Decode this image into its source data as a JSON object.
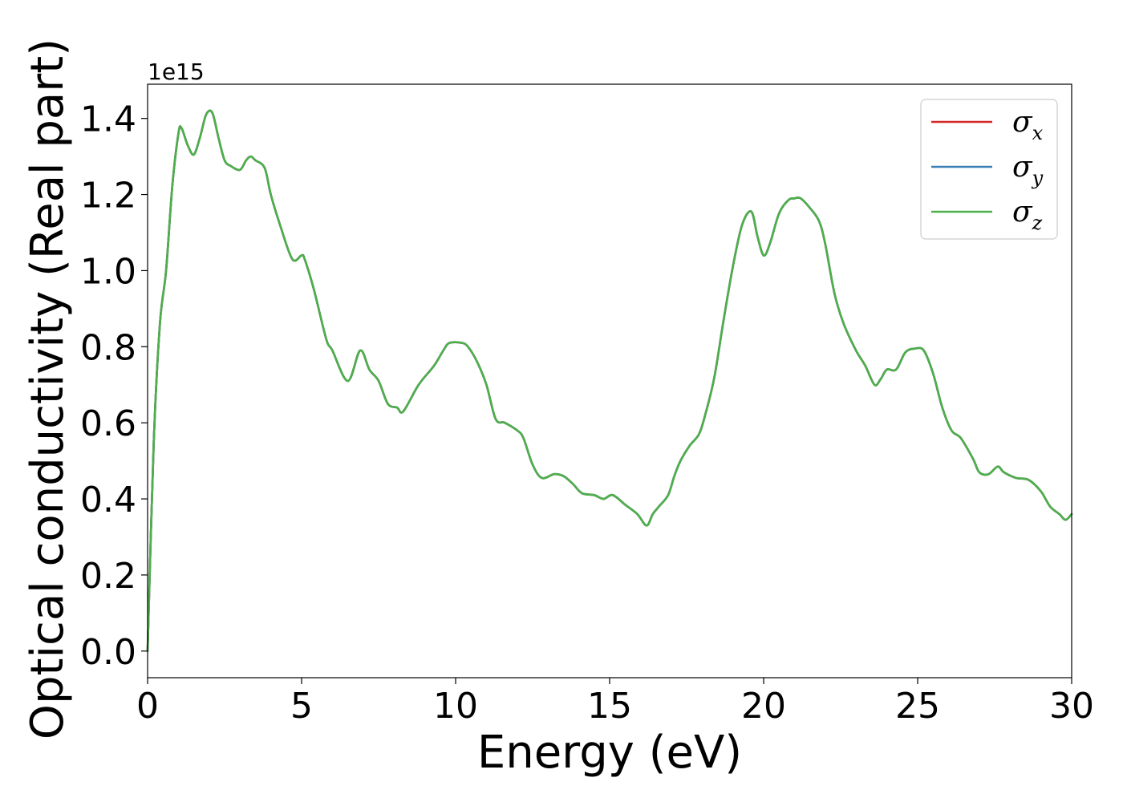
{
  "chart_data": {
    "type": "line",
    "xlabel": "Energy (eV)",
    "ylabel": "Optical conductivity (Real part)",
    "y_offset_label": "1e15",
    "xlim": [
      0,
      30
    ],
    "ylim": [
      -0.07,
      1.49
    ],
    "xticks": [
      0,
      5,
      10,
      15,
      20,
      25,
      30
    ],
    "xtick_labels": [
      "0",
      "5",
      "10",
      "15",
      "20",
      "25",
      "30"
    ],
    "yticks": [
      0.0,
      0.2,
      0.4,
      0.6,
      0.8,
      1.0,
      1.2,
      1.4
    ],
    "ytick_labels": [
      "0.0",
      "0.2",
      "0.4",
      "0.6",
      "0.8",
      "1.0",
      "1.2",
      "1.4"
    ],
    "grid": false,
    "legend_position": "top-right",
    "x": [
      0,
      0.2,
      0.4,
      0.6,
      0.8,
      1.0,
      1.1,
      1.3,
      1.5,
      1.7,
      1.9,
      2.1,
      2.3,
      2.5,
      2.7,
      3.0,
      3.2,
      3.35,
      3.5,
      3.8,
      4.0,
      4.3,
      4.7,
      5.0,
      5.1,
      5.4,
      5.8,
      6.0,
      6.5,
      6.9,
      7.2,
      7.5,
      7.8,
      8.1,
      8.3,
      8.8,
      9.3,
      9.6,
      9.8,
      10.2,
      10.4,
      10.7,
      11.0,
      11.3,
      11.6,
      12.0,
      12.2,
      12.5,
      12.8,
      13.2,
      13.5,
      13.8,
      14.1,
      14.5,
      14.8,
      15.1,
      15.5,
      15.9,
      16.2,
      16.4,
      16.6,
      16.9,
      17.1,
      17.3,
      17.6,
      17.9,
      18.1,
      18.4,
      18.7,
      19.0,
      19.3,
      19.6,
      19.8,
      20.0,
      20.2,
      20.5,
      20.8,
      21.0,
      21.2,
      21.5,
      21.8,
      22.0,
      22.3,
      22.6,
      23.0,
      23.3,
      23.6,
      23.8,
      24.0,
      24.3,
      24.6,
      24.9,
      25.2,
      25.5,
      25.8,
      26.1,
      26.4,
      26.8,
      27.0,
      27.3,
      27.6,
      27.8,
      28.2,
      28.6,
      29.0,
      29.3,
      29.6,
      29.8,
      30.0
    ],
    "series": [
      {
        "name": "σx",
        "label_main": "σ",
        "label_sub": "x",
        "color": "#d62728",
        "y": [
          0.0,
          0.55,
          0.86,
          1.0,
          1.22,
          1.36,
          1.375,
          1.33,
          1.305,
          1.35,
          1.41,
          1.415,
          1.35,
          1.29,
          1.275,
          1.265,
          1.29,
          1.3,
          1.29,
          1.27,
          1.2,
          1.12,
          1.03,
          1.04,
          1.03,
          0.95,
          0.82,
          0.79,
          0.71,
          0.79,
          0.74,
          0.71,
          0.65,
          0.64,
          0.63,
          0.7,
          0.75,
          0.79,
          0.81,
          0.81,
          0.8,
          0.76,
          0.7,
          0.61,
          0.6,
          0.58,
          0.56,
          0.49,
          0.455,
          0.465,
          0.46,
          0.44,
          0.415,
          0.41,
          0.4,
          0.41,
          0.385,
          0.36,
          0.33,
          0.36,
          0.38,
          0.41,
          0.46,
          0.5,
          0.54,
          0.57,
          0.62,
          0.72,
          0.87,
          1.01,
          1.12,
          1.155,
          1.09,
          1.04,
          1.07,
          1.15,
          1.185,
          1.19,
          1.19,
          1.165,
          1.13,
          1.07,
          0.94,
          0.86,
          0.79,
          0.75,
          0.7,
          0.715,
          0.74,
          0.74,
          0.785,
          0.795,
          0.79,
          0.73,
          0.64,
          0.58,
          0.56,
          0.505,
          0.47,
          0.465,
          0.485,
          0.47,
          0.455,
          0.45,
          0.42,
          0.38,
          0.36,
          0.345,
          0.36
        ]
      },
      {
        "name": "σy",
        "label_main": "σ",
        "label_sub": "y",
        "color": "#3a7fb7",
        "y": [
          0.0,
          0.55,
          0.86,
          1.0,
          1.22,
          1.36,
          1.375,
          1.33,
          1.305,
          1.35,
          1.41,
          1.415,
          1.35,
          1.29,
          1.275,
          1.265,
          1.29,
          1.3,
          1.29,
          1.27,
          1.2,
          1.12,
          1.03,
          1.04,
          1.03,
          0.95,
          0.82,
          0.79,
          0.71,
          0.79,
          0.74,
          0.71,
          0.65,
          0.64,
          0.63,
          0.7,
          0.75,
          0.79,
          0.81,
          0.81,
          0.8,
          0.76,
          0.7,
          0.61,
          0.6,
          0.58,
          0.56,
          0.49,
          0.455,
          0.465,
          0.46,
          0.44,
          0.415,
          0.41,
          0.4,
          0.41,
          0.385,
          0.36,
          0.33,
          0.36,
          0.38,
          0.41,
          0.46,
          0.5,
          0.54,
          0.57,
          0.62,
          0.72,
          0.87,
          1.01,
          1.12,
          1.155,
          1.09,
          1.04,
          1.07,
          1.15,
          1.185,
          1.19,
          1.19,
          1.165,
          1.13,
          1.07,
          0.94,
          0.86,
          0.79,
          0.75,
          0.7,
          0.715,
          0.74,
          0.74,
          0.785,
          0.795,
          0.79,
          0.73,
          0.64,
          0.58,
          0.56,
          0.505,
          0.47,
          0.465,
          0.485,
          0.47,
          0.455,
          0.45,
          0.42,
          0.38,
          0.36,
          0.345,
          0.36
        ]
      },
      {
        "name": "σz",
        "label_main": "σ",
        "label_sub": "z",
        "color": "#4daf4a",
        "y": [
          0.0,
          0.55,
          0.86,
          1.0,
          1.22,
          1.36,
          1.375,
          1.33,
          1.305,
          1.35,
          1.41,
          1.415,
          1.35,
          1.29,
          1.275,
          1.265,
          1.29,
          1.3,
          1.29,
          1.27,
          1.2,
          1.12,
          1.03,
          1.04,
          1.03,
          0.95,
          0.82,
          0.79,
          0.71,
          0.79,
          0.74,
          0.71,
          0.65,
          0.64,
          0.63,
          0.7,
          0.75,
          0.79,
          0.81,
          0.81,
          0.8,
          0.76,
          0.7,
          0.61,
          0.6,
          0.58,
          0.56,
          0.49,
          0.455,
          0.465,
          0.46,
          0.44,
          0.415,
          0.41,
          0.4,
          0.41,
          0.385,
          0.36,
          0.33,
          0.36,
          0.38,
          0.41,
          0.46,
          0.5,
          0.54,
          0.57,
          0.62,
          0.72,
          0.87,
          1.01,
          1.12,
          1.155,
          1.09,
          1.04,
          1.07,
          1.15,
          1.185,
          1.19,
          1.19,
          1.165,
          1.13,
          1.07,
          0.94,
          0.86,
          0.79,
          0.75,
          0.7,
          0.715,
          0.74,
          0.74,
          0.785,
          0.795,
          0.79,
          0.73,
          0.64,
          0.58,
          0.56,
          0.505,
          0.47,
          0.465,
          0.485,
          0.47,
          0.455,
          0.45,
          0.42,
          0.38,
          0.36,
          0.345,
          0.36
        ]
      }
    ]
  }
}
